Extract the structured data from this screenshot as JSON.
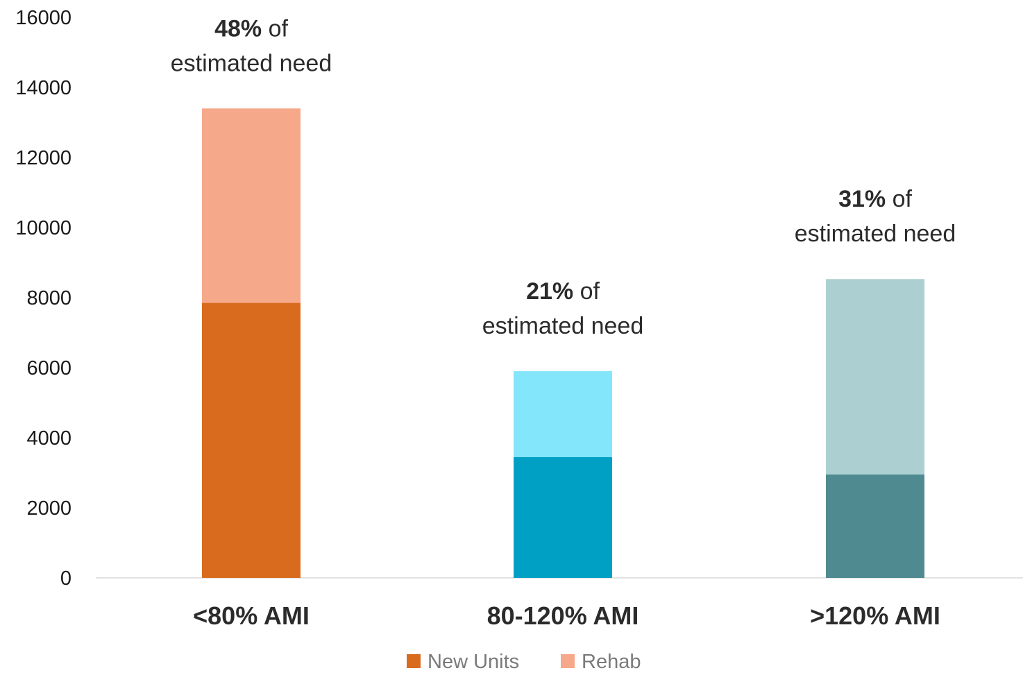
{
  "chart_data": {
    "type": "bar",
    "stacked": true,
    "categories": [
      "<80% AMI",
      "80-120% AMI",
      ">120% AMI"
    ],
    "series": [
      {
        "name": "New Units",
        "values": [
          7850,
          3450,
          2950
        ],
        "colors": [
          "#D96B1E",
          "#00A0C4",
          "#4E8A8F"
        ]
      },
      {
        "name": "Rehab",
        "values": [
          5550,
          2450,
          5580
        ],
        "colors": [
          "#F6A98A",
          "#84E6FB",
          "#ACD0D2"
        ]
      }
    ],
    "ylim": [
      0,
      16000
    ],
    "yticks": [
      0,
      2000,
      4000,
      6000,
      8000,
      10000,
      12000,
      14000,
      16000
    ],
    "legend": {
      "position": "bottom",
      "items": [
        {
          "label": "New Units",
          "color": "#D96B1E"
        },
        {
          "label": "Rehab",
          "color": "#F6A98A"
        }
      ]
    },
    "annotations": [
      {
        "bold": "48%",
        "rest": " of",
        "line2": "estimated need"
      },
      {
        "bold": "21%",
        "rest": " of",
        "line2": "estimated need"
      },
      {
        "bold": "31%",
        "rest": " of",
        "line2": "estimated need"
      }
    ],
    "grid": false,
    "xlabel": "",
    "ylabel": ""
  }
}
